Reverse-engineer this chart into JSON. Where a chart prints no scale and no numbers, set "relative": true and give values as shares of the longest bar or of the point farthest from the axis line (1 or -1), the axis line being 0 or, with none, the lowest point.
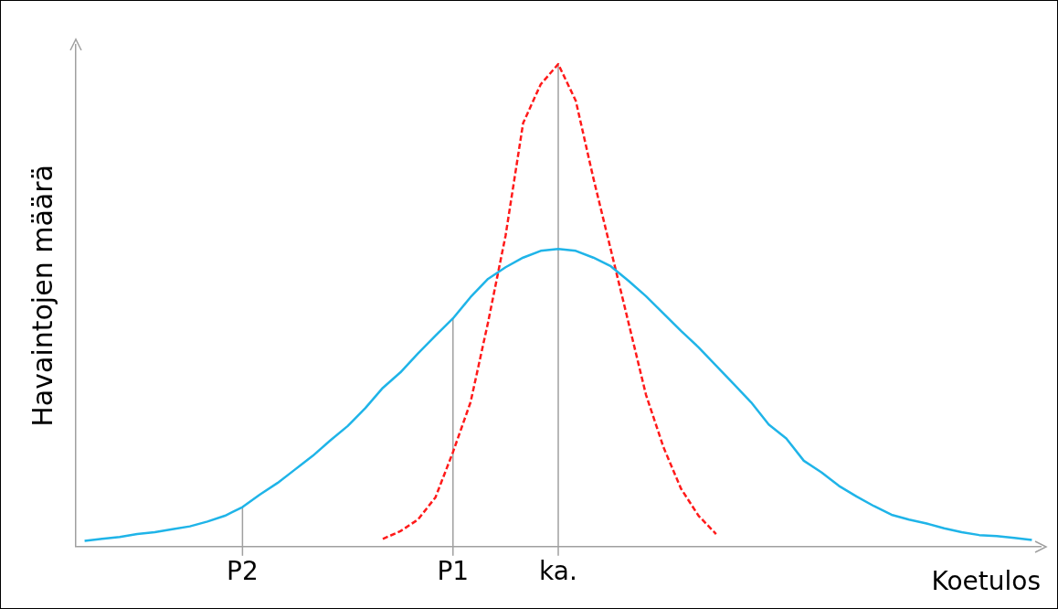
{
  "chart_data": {
    "type": "line",
    "relative": true,
    "xlabel": "Koetulos",
    "ylabel": "Havaintojen määrä",
    "legend": false,
    "marker": "none",
    "categories": [
      null,
      null,
      null,
      null,
      null,
      null,
      null,
      null,
      null,
      "P2",
      null,
      null,
      null,
      null,
      null,
      null,
      null,
      null,
      null,
      null,
      null,
      "P1",
      null,
      null,
      null,
      null,
      null,
      "ka.",
      null,
      null,
      null,
      null,
      null,
      null,
      null,
      null,
      null,
      null,
      null,
      null,
      null,
      null,
      null,
      null,
      null,
      null,
      null,
      null,
      null,
      null,
      null,
      null,
      null,
      null,
      null
    ],
    "series": [
      {
        "color": "#1fb4e8",
        "line_style": "solid",
        "values": [
          0.012,
          0.016,
          0.02,
          0.026,
          0.03,
          0.036,
          0.042,
          0.052,
          0.064,
          0.082,
          0.108,
          0.132,
          0.16,
          0.188,
          0.22,
          0.25,
          0.287,
          0.329,
          0.361,
          0.4,
          0.437,
          0.473,
          0.517,
          0.555,
          0.579,
          0.599,
          0.613,
          0.617,
          0.613,
          0.599,
          0.581,
          0.551,
          0.519,
          0.483,
          0.447,
          0.413,
          0.375,
          0.337,
          0.299,
          0.253,
          0.224,
          0.178,
          0.154,
          0.126,
          0.104,
          0.084,
          0.066,
          0.056,
          0.048,
          0.038,
          0.03,
          0.024,
          0.022,
          0.018,
          0.014
        ]
      },
      {
        "color": "#ff1a1a",
        "line_style": "dashed",
        "values": [
          null,
          null,
          null,
          null,
          null,
          null,
          null,
          null,
          null,
          null,
          null,
          null,
          null,
          null,
          null,
          null,
          null,
          0.016,
          0.032,
          0.056,
          0.102,
          0.196,
          0.299,
          0.465,
          0.645,
          0.878,
          0.958,
          1,
          0.924,
          0.764,
          0.615,
          0.465,
          0.315,
          0.206,
          0.12,
          0.064,
          0.026,
          null,
          null,
          null,
          null,
          null,
          null,
          null,
          null,
          null,
          null,
          null,
          null,
          null,
          null,
          null,
          null,
          null,
          null
        ]
      }
    ],
    "ref_lines": [
      {
        "axis": "x",
        "value": "P2",
        "color": "#a0a0a0"
      },
      {
        "axis": "x",
        "value": "P1",
        "color": "#a0a0a0"
      },
      {
        "axis": "x",
        "value": "ka.",
        "color": "#a0a0a0"
      }
    ]
  }
}
